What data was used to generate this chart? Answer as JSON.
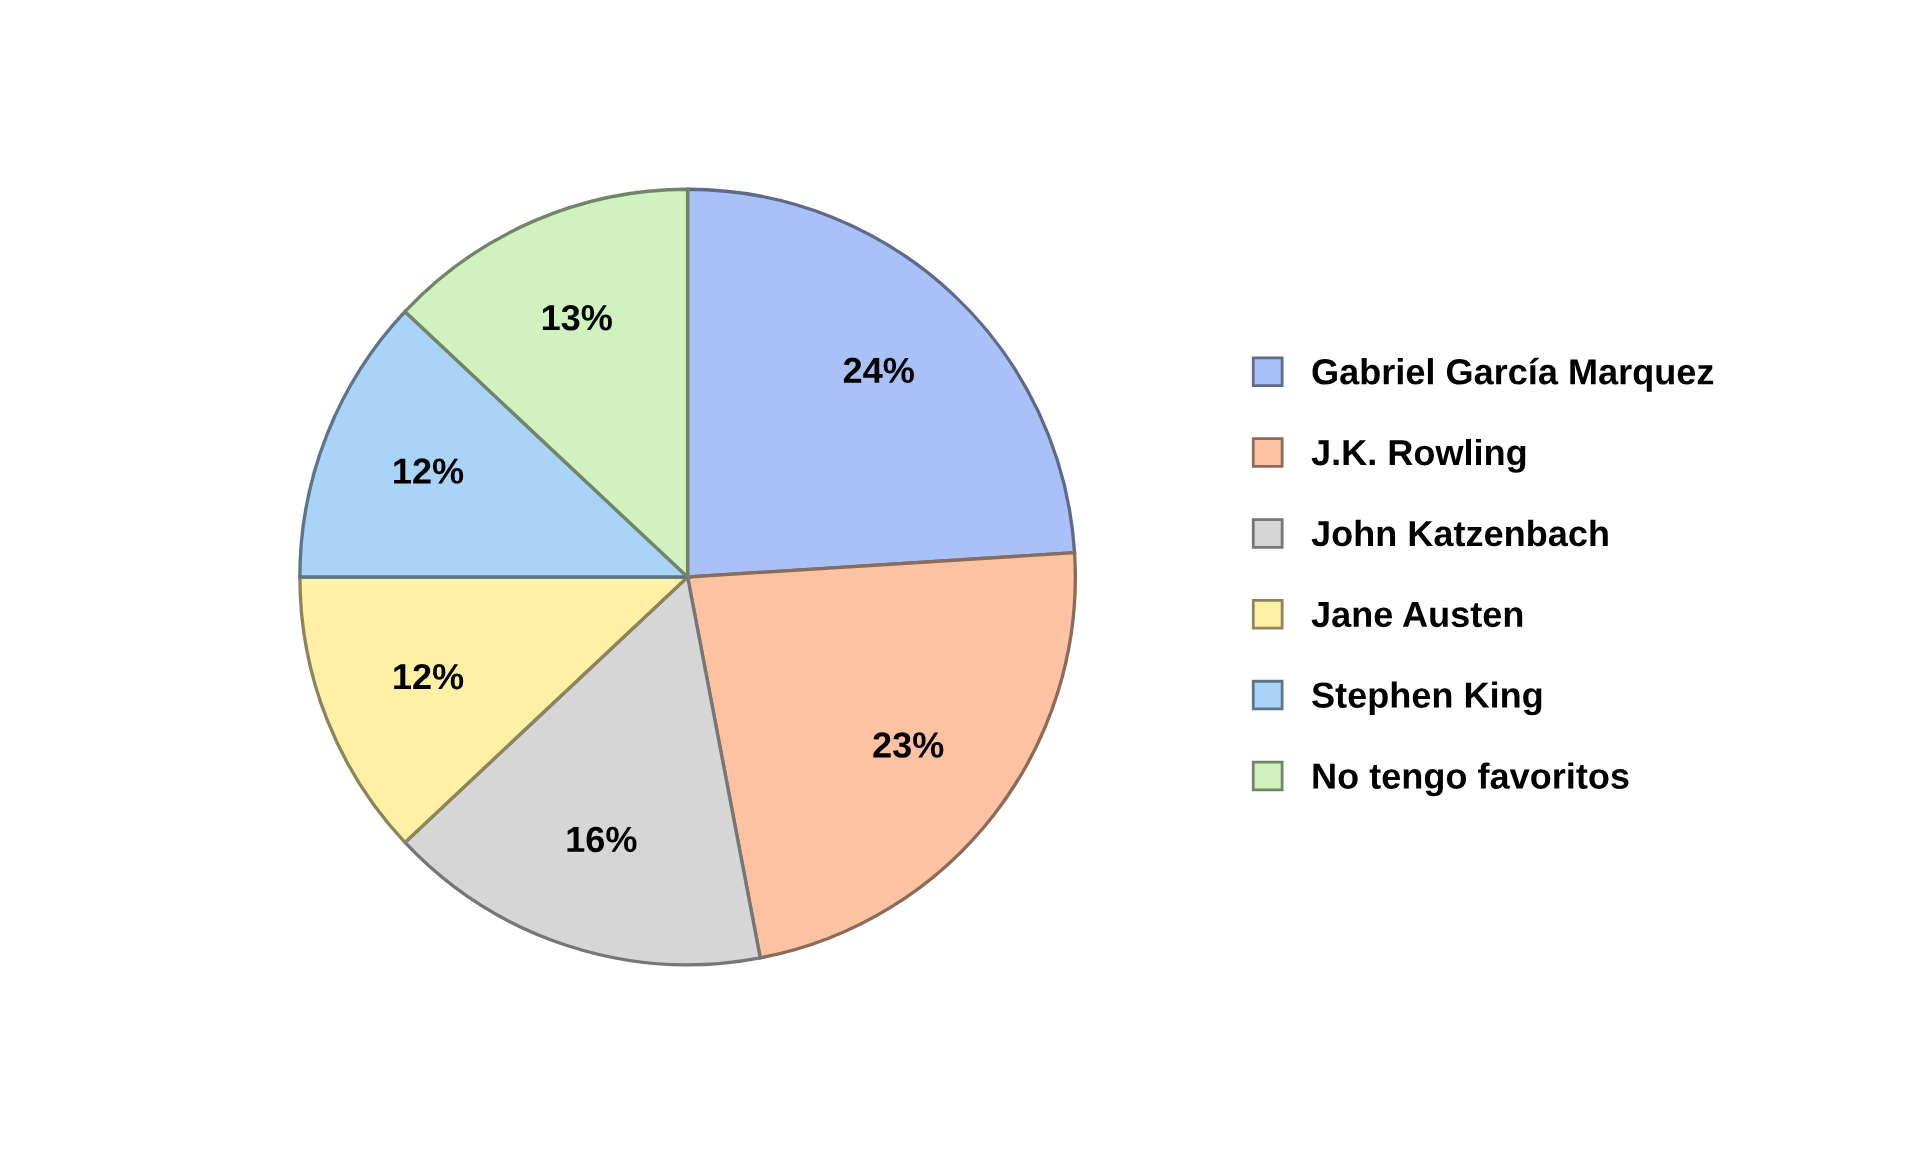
{
  "chart_data": {
    "type": "pie",
    "categories": [
      "Gabriel García Marquez",
      "J.K. Rowling",
      "John Katzenbach",
      "Jane Austen",
      "Stephen King",
      "No tengo favoritos"
    ],
    "values": [
      24,
      23,
      16,
      12,
      12,
      13
    ],
    "colors": [
      "#a9c1f7",
      "#fcc2a2",
      "#d6d6d6",
      "#fff0a6",
      "#a9d4f7",
      "#cff2bf"
    ],
    "value_labels": [
      "24%",
      "23%",
      "16%",
      "12%",
      "12%",
      "13%"
    ],
    "legend": "right"
  }
}
